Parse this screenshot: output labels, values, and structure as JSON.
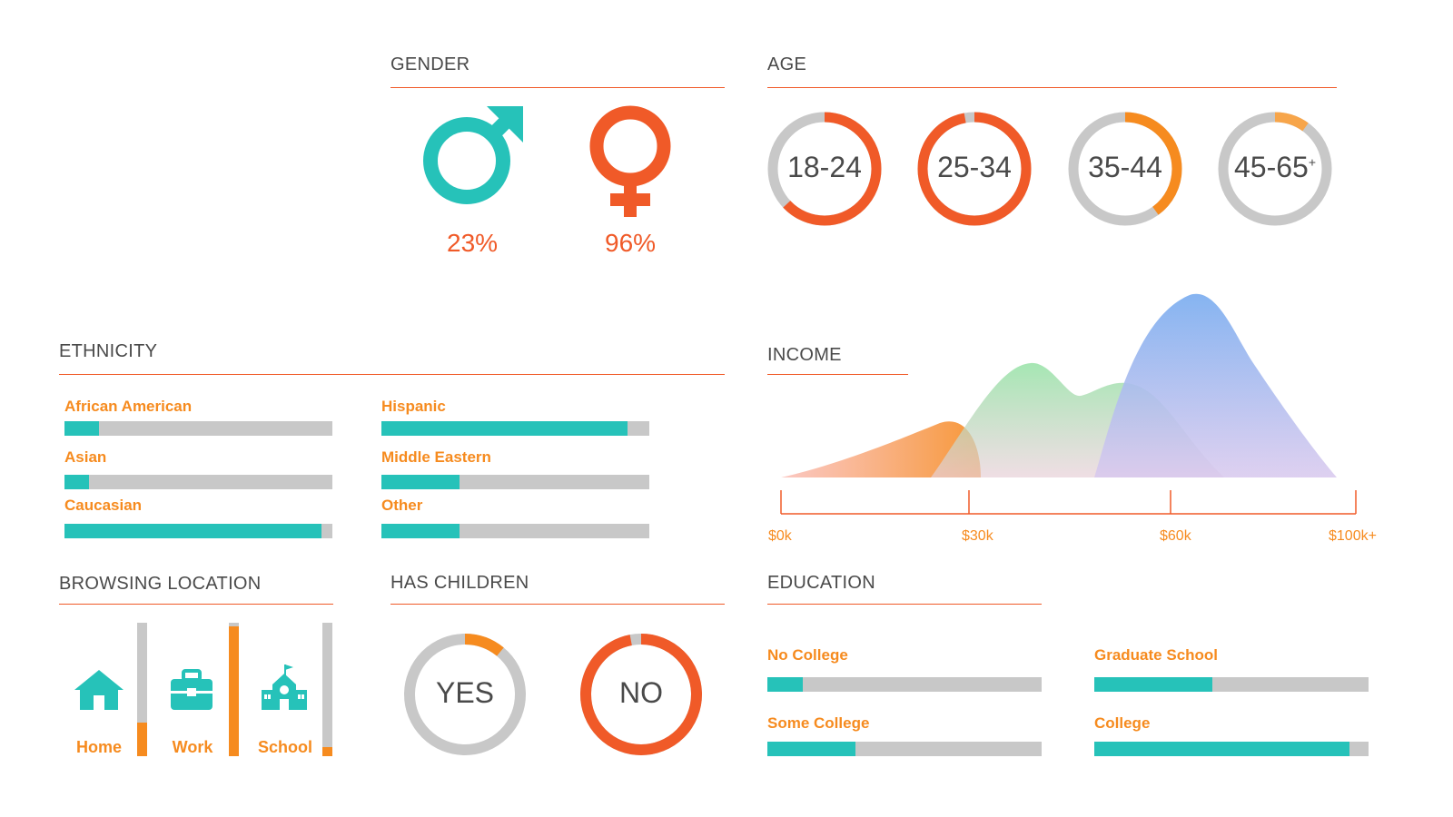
{
  "colors": {
    "teal": "#26c2b9",
    "orange_red": "#f05a28",
    "orange": "#f68b1f",
    "light_orange": "#f7a54a",
    "gray": "#c8c8c8"
  },
  "gender": {
    "title": "GENDER",
    "male": {
      "icon": "male-symbol-icon",
      "percent": "23%",
      "value": 23
    },
    "female": {
      "icon": "female-symbol-icon",
      "percent": "96%",
      "value": 96
    }
  },
  "age": {
    "title": "AGE",
    "groups": [
      {
        "label": "18-24",
        "sup": "",
        "fraction": 0.63,
        "color": "#f05a28"
      },
      {
        "label": "25-34",
        "sup": "",
        "fraction": 0.97,
        "color": "#f05a28"
      },
      {
        "label": "35-44",
        "sup": "",
        "fraction": 0.4,
        "color": "#f68b1f"
      },
      {
        "label": "45-65",
        "sup": "+",
        "fraction": 0.1,
        "color": "#f7a54a"
      }
    ]
  },
  "ethnicity": {
    "title": "ETHNICITY",
    "items": [
      {
        "label": "African American",
        "fraction": 0.13
      },
      {
        "label": "Asian",
        "fraction": 0.09
      },
      {
        "label": "Caucasian",
        "fraction": 0.96
      },
      {
        "label": "Hispanic",
        "fraction": 0.92
      },
      {
        "label": "Middle Eastern",
        "fraction": 0.29
      },
      {
        "label": "Other",
        "fraction": 0.29
      }
    ]
  },
  "income": {
    "title": "INCOME",
    "ticks": [
      "$0k",
      "$30k",
      "$60k",
      "$100k+"
    ]
  },
  "chart_data": {
    "type": "area",
    "title": "INCOME",
    "x_ticks": [
      "$0k",
      "$30k",
      "$60k",
      "$100k+"
    ],
    "series": [
      {
        "peak_x": "$30k",
        "relative_height": 0.3,
        "color": "#f68b1f"
      },
      {
        "peak_x": "$30k-$60k",
        "relative_height": 0.63,
        "color": "#8fe0a0"
      },
      {
        "peak_x": "$60k-$100k+",
        "relative_height": 1.0,
        "color": "#7fb0f0"
      }
    ]
  },
  "browsing": {
    "title": "BROWSING LOCATION",
    "items": [
      {
        "label": "Home",
        "icon": "house-icon",
        "fraction": 0.25
      },
      {
        "label": "Work",
        "icon": "briefcase-icon",
        "fraction": 0.97
      },
      {
        "label": "School",
        "icon": "school-icon",
        "fraction": 0.07
      }
    ]
  },
  "children": {
    "title": "HAS CHILDREN",
    "yes": {
      "label": "YES",
      "fraction": 0.11,
      "color": "#f68b1f"
    },
    "no": {
      "label": "NO",
      "fraction": 0.97,
      "color": "#f05a28"
    }
  },
  "education": {
    "title": "EDUCATION",
    "items": [
      {
        "label": "No College",
        "fraction": 0.13
      },
      {
        "label": "Some College",
        "fraction": 0.32
      },
      {
        "label": "Graduate School",
        "fraction": 0.43
      },
      {
        "label": "College",
        "fraction": 0.93
      }
    ]
  }
}
